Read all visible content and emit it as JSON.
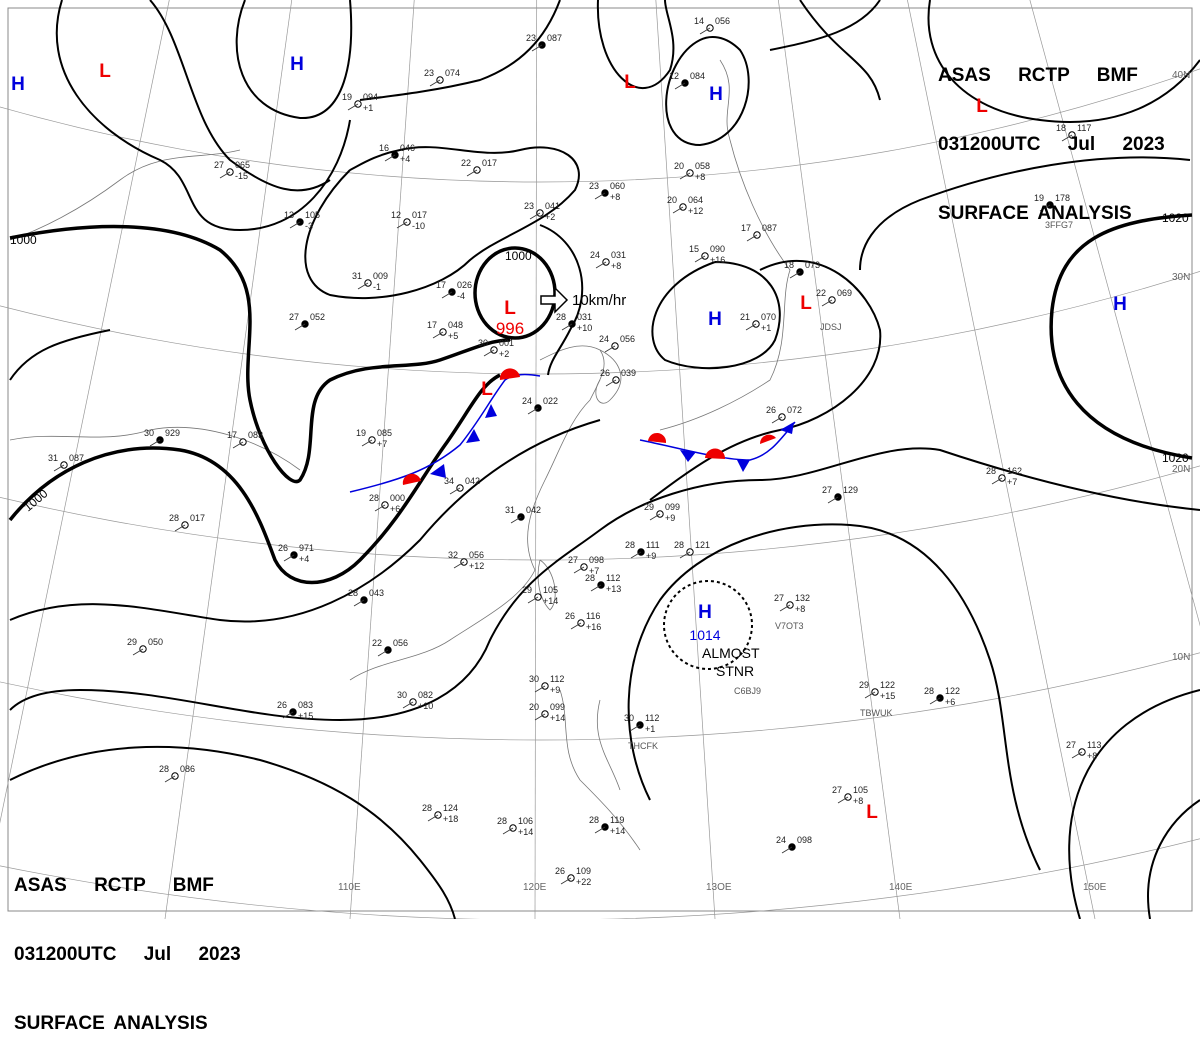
{
  "header": {
    "line1": "ASAS RCTP BMF",
    "line2": "031200UTC Jul 2023",
    "line3": "SURFACE ANALYSIS"
  },
  "colors": {
    "high": "#0000dd",
    "low": "#ee0000",
    "isobar": "#000000",
    "grid": "#999999",
    "warm_front": "#ee0000",
    "cold_front": "#0000dd"
  },
  "grid_labels": {
    "longitudes": [
      "110E",
      "120E",
      "13OE",
      "140E",
      "150E"
    ],
    "latitudes": [
      "40N",
      "30N",
      "20N",
      "10N"
    ]
  },
  "pressure_centers": [
    {
      "type": "H",
      "label": "H"
    },
    {
      "type": "H",
      "label": "H"
    },
    {
      "type": "H",
      "label": "H"
    },
    {
      "type": "H",
      "label": "H"
    },
    {
      "type": "H",
      "label": "H"
    },
    {
      "type": "H",
      "label": "H",
      "value": "1014"
    },
    {
      "type": "L",
      "label": "L"
    },
    {
      "type": "L",
      "label": "L"
    },
    {
      "type": "L",
      "label": "L"
    },
    {
      "type": "L",
      "label": "L",
      "value": "996"
    },
    {
      "type": "L",
      "label": "L"
    },
    {
      "type": "L",
      "label": "L"
    },
    {
      "type": "L",
      "label": "L"
    }
  ],
  "isobar_labels": [
    "1000",
    "1000",
    "1000",
    "1020",
    "1020"
  ],
  "annotations": {
    "movement": "10km/hr",
    "almost_stnr_1": "ALMOST",
    "almost_stnr_2": "STNR"
  },
  "ship_callsigns": [
    "3FFG7",
    "JDSJ",
    "V7OT3",
    "C6BJ9",
    "TBWUK",
    "THCFK"
  ],
  "stations": [
    {
      "t": "23",
      "p": "087",
      "d": ""
    },
    {
      "t": "23",
      "p": "074",
      "d": ""
    },
    {
      "t": "19",
      "p": "094",
      "d": "+1"
    },
    {
      "t": "16",
      "p": "046",
      "d": "+4"
    },
    {
      "t": "22",
      "p": "017",
      "d": ""
    },
    {
      "t": "27",
      "p": "065",
      "d": "-15"
    },
    {
      "t": "13",
      "p": "105",
      "d": "-3"
    },
    {
      "t": "12",
      "p": "017",
      "d": "-10"
    },
    {
      "t": "23",
      "p": "041",
      "d": "+2"
    },
    {
      "t": "23",
      "p": "060",
      "d": "+8"
    },
    {
      "t": "20",
      "p": "058",
      "d": "+8"
    },
    {
      "t": "20",
      "p": "064",
      "d": "+12"
    },
    {
      "t": "12",
      "p": "084",
      "d": ""
    },
    {
      "t": "14",
      "p": "056",
      "d": ""
    },
    {
      "t": "24",
      "p": "031",
      "d": "+8"
    },
    {
      "t": "28",
      "p": "031",
      "d": "+10"
    },
    {
      "t": "15",
      "p": "090",
      "d": "+16"
    },
    {
      "t": "17",
      "p": "087",
      "d": ""
    },
    {
      "t": "18",
      "p": "073",
      "d": ""
    },
    {
      "t": "22",
      "p": "069",
      "d": ""
    },
    {
      "t": "21",
      "p": "070",
      "d": "+1"
    },
    {
      "t": "17",
      "p": "026",
      "d": "-4"
    },
    {
      "t": "17",
      "p": "048",
      "d": "+5"
    },
    {
      "t": "31",
      "p": "009",
      "d": "-1"
    },
    {
      "t": "27",
      "p": "052",
      "d": ""
    },
    {
      "t": "19",
      "p": "085",
      "d": "+7"
    },
    {
      "t": "31",
      "p": "087",
      "d": ""
    },
    {
      "t": "30",
      "p": "929",
      "d": ""
    },
    {
      "t": "17",
      "p": "083",
      "d": ""
    },
    {
      "t": "28",
      "p": "017",
      "d": ""
    },
    {
      "t": "26",
      "p": "971",
      "d": "+4"
    },
    {
      "t": "28",
      "p": "000",
      "d": "+6"
    },
    {
      "t": "34",
      "p": "042",
      "d": ""
    },
    {
      "t": "31",
      "p": "042",
      "d": ""
    },
    {
      "t": "32",
      "p": "056",
      "d": "+12"
    },
    {
      "t": "27",
      "p": "098",
      "d": "+7"
    },
    {
      "t": "28",
      "p": "111",
      "d": "+9"
    },
    {
      "t": "28",
      "p": "121",
      "d": ""
    },
    {
      "t": "29",
      "p": "099",
      "d": "+9"
    },
    {
      "t": "27",
      "p": "129",
      "d": ""
    },
    {
      "t": "28",
      "p": "162",
      "d": "+7"
    },
    {
      "t": "18",
      "p": "117",
      "d": ""
    },
    {
      "t": "19",
      "p": "178",
      "d": ""
    },
    {
      "t": "27",
      "p": "132",
      "d": "+8"
    },
    {
      "t": "29",
      "p": "122",
      "d": "+15"
    },
    {
      "t": "28",
      "p": "122",
      "d": "+6"
    },
    {
      "t": "27",
      "p": "113",
      "d": "+8"
    },
    {
      "t": "27",
      "p": "105",
      "d": "+8"
    },
    {
      "t": "24",
      "p": "098",
      "d": ""
    },
    {
      "t": "30",
      "p": "112",
      "d": "+9"
    },
    {
      "t": "20",
      "p": "099",
      "d": "+14"
    },
    {
      "t": "30",
      "p": "112",
      "d": "+1"
    },
    {
      "t": "28",
      "p": "124",
      "d": "+18"
    },
    {
      "t": "28",
      "p": "106",
      "d": "+14"
    },
    {
      "t": "28",
      "p": "119",
      "d": "+14"
    },
    {
      "t": "26",
      "p": "109",
      "d": "+22"
    },
    {
      "t": "28",
      "p": "086",
      "d": ""
    },
    {
      "t": "26",
      "p": "083",
      "d": "+15"
    },
    {
      "t": "30",
      "p": "082",
      "d": "+10"
    },
    {
      "t": "29",
      "p": "050",
      "d": ""
    },
    {
      "t": "22",
      "p": "056",
      "d": ""
    },
    {
      "t": "29",
      "p": "105",
      "d": "+14"
    },
    {
      "t": "26",
      "p": "116",
      "d": "+16"
    },
    {
      "t": "28",
      "p": "112",
      "d": "+13"
    },
    {
      "t": "24",
      "p": "056",
      "d": ""
    },
    {
      "t": "26",
      "p": "039",
      "d": ""
    },
    {
      "t": "24",
      "p": "022",
      "d": ""
    },
    {
      "t": "26",
      "p": "072",
      "d": ""
    },
    {
      "t": "30",
      "p": "001",
      "d": "+2"
    },
    {
      "t": "28",
      "p": "043",
      "d": ""
    }
  ]
}
